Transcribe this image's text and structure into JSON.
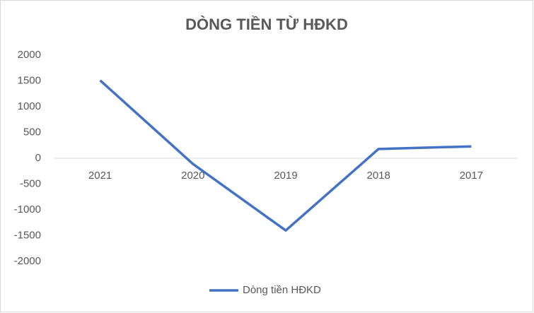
{
  "chart_data": {
    "type": "line",
    "title": "DÒNG TIỀN TỪ HĐKD",
    "categories": [
      "2021",
      "2020",
      "2019",
      "2018",
      "2017"
    ],
    "series": [
      {
        "name": "Dòng tiền HĐKD",
        "color": "#4472c4",
        "values": [
          1510,
          -110,
          -1400,
          180,
          230
        ]
      }
    ],
    "ylim": [
      -2000,
      2000
    ],
    "yticks": [
      -2000,
      -1500,
      -1000,
      -500,
      0,
      500,
      1000,
      1500,
      2000
    ],
    "grid": false,
    "legend": "bottom"
  }
}
